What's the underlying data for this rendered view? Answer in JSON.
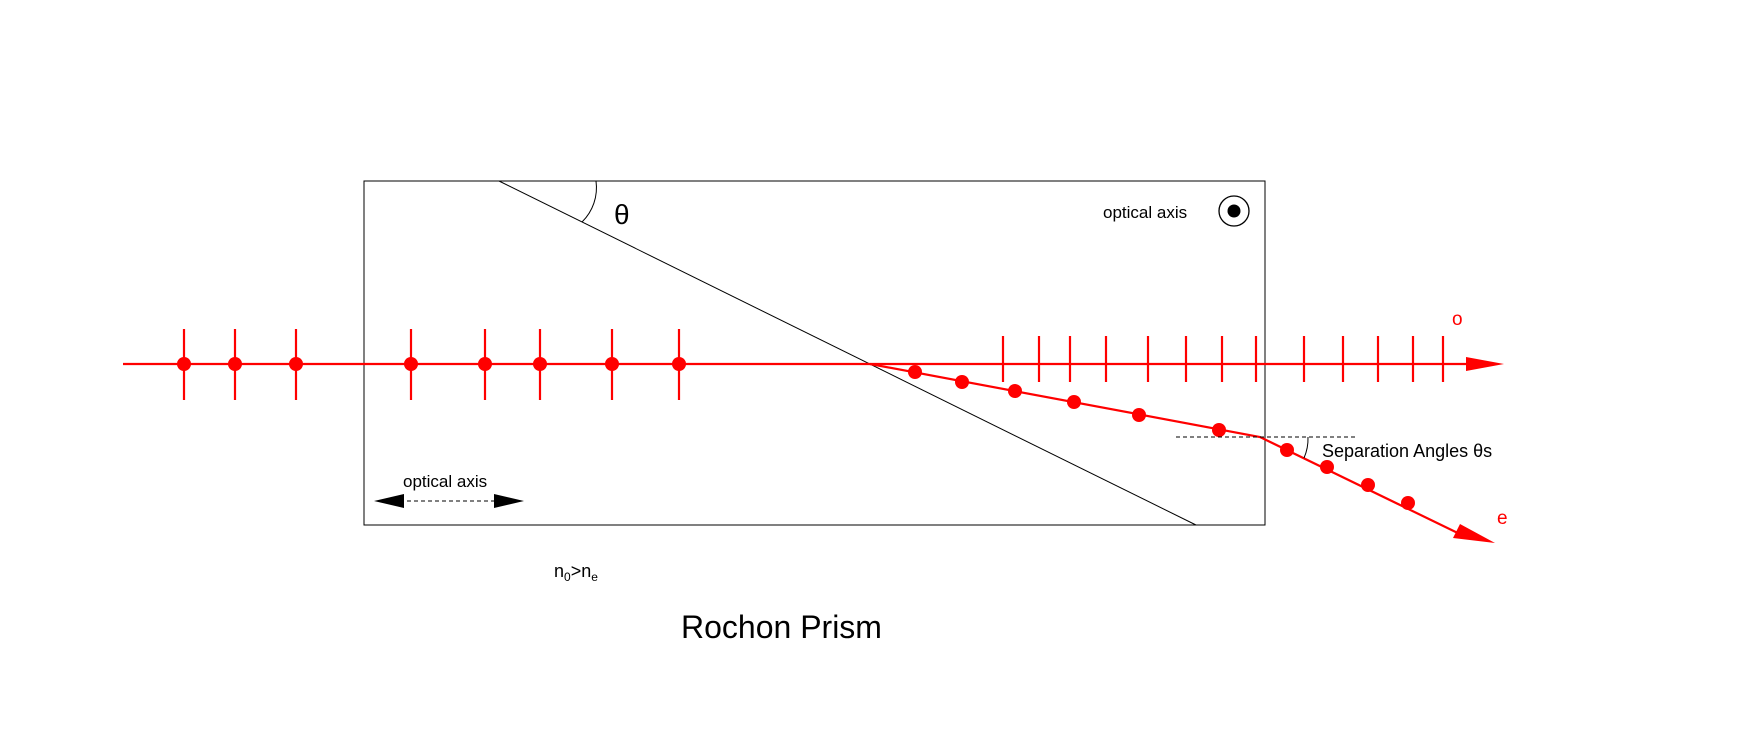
{
  "title": "Rochon Prism",
  "angle_label": "θ",
  "optical_axis_top_label": "optical axis",
  "optical_axis_bottom_label": "optical axis",
  "separation_label": "Separation Angles θs",
  "ray_o_label": "o",
  "ray_e_label": "e",
  "index_relation": {
    "n_left": "n",
    "sub_left": "0",
    "op": ">",
    "n_right": "n",
    "sub_right": "e"
  },
  "colors": {
    "ray": "#ff0000",
    "outline": "#000000",
    "background": "#ffffff"
  },
  "icons": {
    "axis_out_of_plane": "circled-dot-icon",
    "axis_in_plane": "double-arrow-icon"
  }
}
